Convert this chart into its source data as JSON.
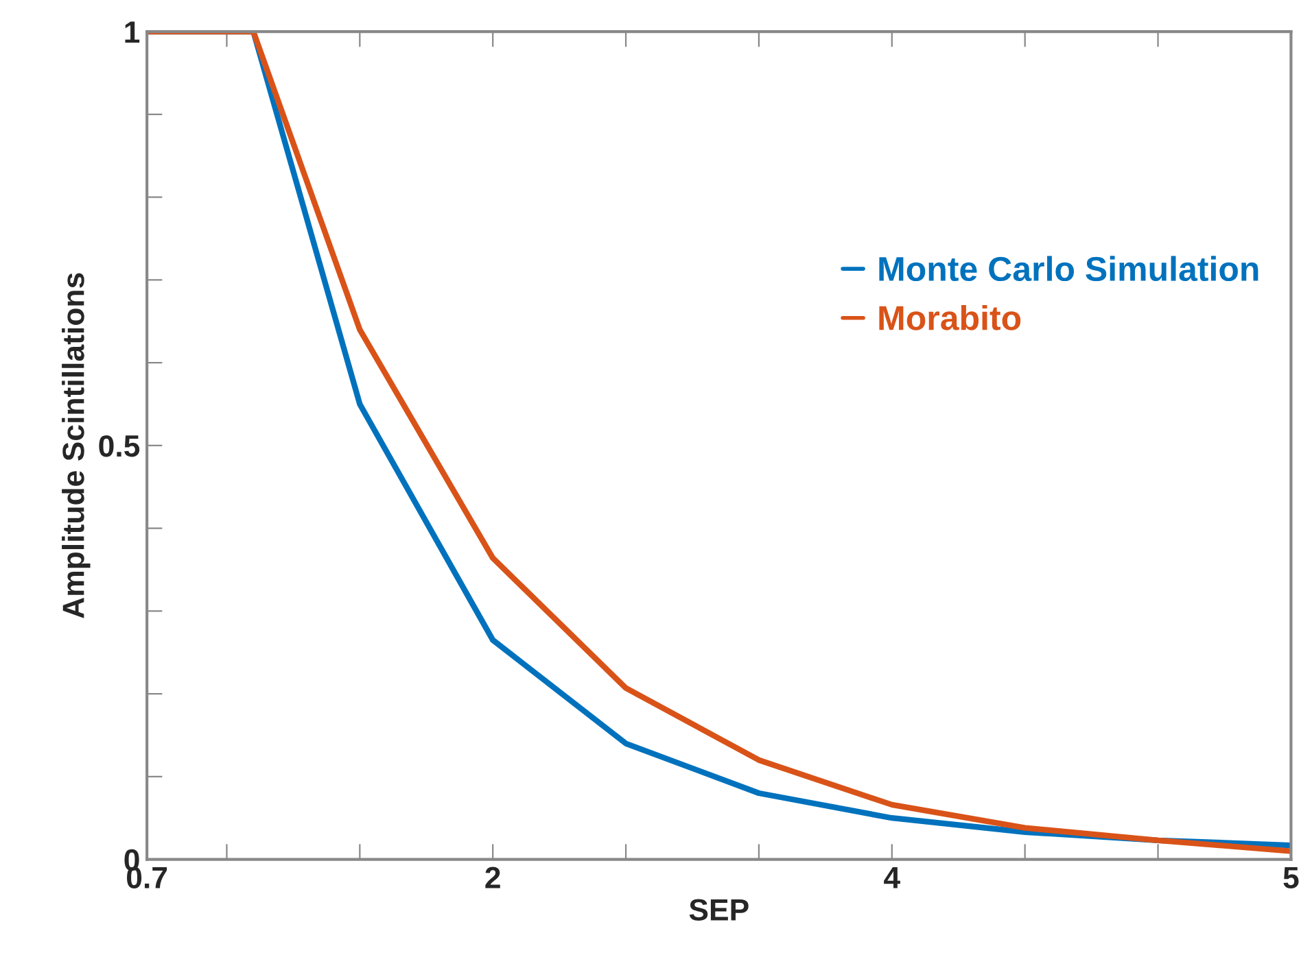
{
  "chart_data": {
    "type": "line",
    "xlabel": "SEP",
    "ylabel": "Amplitude Scintillations",
    "x": [
      0.7,
      1.1,
      1.5,
      2.0,
      2.5,
      3.0,
      3.5,
      4.0,
      4.5,
      5.0
    ],
    "series": [
      {
        "name": "Monte Carlo Simulation",
        "color": "#0072bd",
        "values": [
          1,
          1,
          0.55,
          0.265,
          0.14,
          0.08,
          0.05,
          0.033,
          0.023,
          0.017
        ]
      },
      {
        "name": "Morabito",
        "color": "#d95319",
        "values": [
          1,
          1,
          0.64,
          0.364,
          0.207,
          0.12,
          0.066,
          0.038,
          0.023,
          0.01
        ]
      }
    ],
    "xlim": [
      0.7,
      5
    ],
    "xticks": [
      {
        "value": 0.7,
        "label": "0.7"
      },
      {
        "value": 1,
        "label": null
      },
      {
        "value": 1.5,
        "label": null
      },
      {
        "value": 2,
        "label": "2"
      },
      {
        "value": 2.5,
        "label": null
      },
      {
        "value": 3,
        "label": null
      },
      {
        "value": 3.5,
        "label": "4"
      },
      {
        "value": 4,
        "label": null
      },
      {
        "value": 4.5,
        "label": null
      },
      {
        "value": 5,
        "label": "5"
      }
    ],
    "ylim": [
      0,
      1
    ],
    "yticks": [
      0,
      {
        "value": 0.1,
        "label": null
      },
      {
        "value": 0.2,
        "label": null
      },
      {
        "value": 0.3,
        "label": null
      },
      {
        "value": 0.4,
        "label": null
      },
      0.5,
      {
        "value": 0.6,
        "label": null
      },
      {
        "value": 0.7,
        "label": null
      },
      {
        "value": 0.8,
        "label": null
      },
      {
        "value": 0.9,
        "label": null
      },
      1
    ],
    "grid": false,
    "legend": "right",
    "marker": "none",
    "line_style": "solid"
  }
}
